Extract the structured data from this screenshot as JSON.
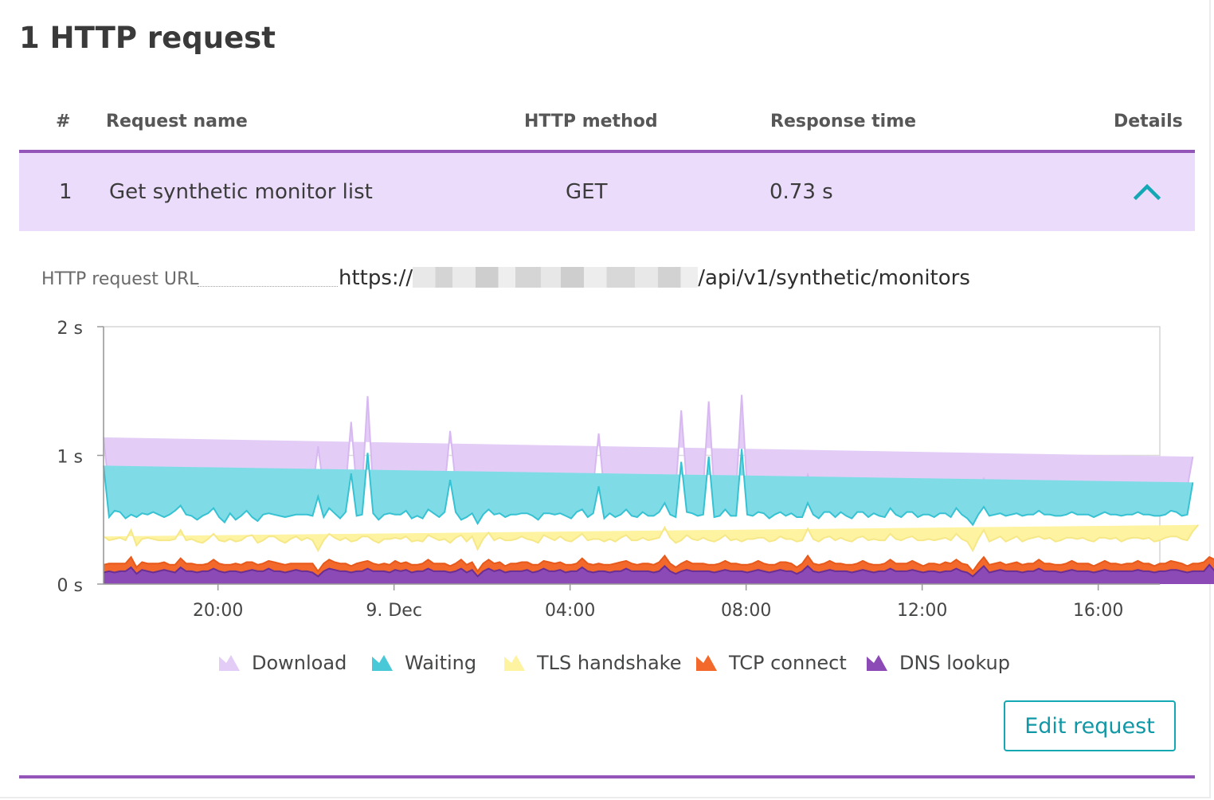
{
  "section_title": "1 HTTP request",
  "table": {
    "headers": {
      "index": "#",
      "name": "Request name",
      "method": "HTTP method",
      "response_time": "Response time",
      "details": "Details"
    },
    "rows": [
      {
        "index": "1",
        "name": "Get synthetic monitor list",
        "method": "GET",
        "response_time": "0.73 s",
        "details_icon": "chevron-up-icon"
      }
    ]
  },
  "request_url": {
    "label": "HTTP request URL",
    "prefix": "https://",
    "suffix": "/api/v1/synthetic/monitors"
  },
  "edit_button_label": "Edit request",
  "colors": {
    "accent_purple": "#9355b7",
    "row_highlight": "#ebdcfc",
    "teal": "#14a8b5"
  },
  "chart_data": {
    "type": "area",
    "stacked": true,
    "y_unit": "s",
    "ylim": [
      0,
      2
    ],
    "y_ticks": [
      "0 s",
      "1 s",
      "2 s"
    ],
    "x_ticks": [
      {
        "label": "20:00",
        "at": 2
      },
      {
        "label": "9. Dec",
        "at": 6
      },
      {
        "label": "04:00",
        "at": 10
      },
      {
        "label": "08:00",
        "at": 14
      },
      {
        "label": "12:00",
        "at": 18
      },
      {
        "label": "16:00",
        "at": 22
      }
    ],
    "x_range": [
      -0.6,
      23.4
    ],
    "x_step": 0.125,
    "grid": true,
    "legend_position": "bottom",
    "series": [
      {
        "name": "DNS lookup",
        "color": "#8b4ab5",
        "values": [
          0.09,
          0.1,
          0.09,
          0.1,
          0.1,
          0.13,
          0.08,
          0.11,
          0.1,
          0.09,
          0.1,
          0.11,
          0.1,
          0.09,
          0.13,
          0.1,
          0.1,
          0.09,
          0.1,
          0.1,
          0.12,
          0.1,
          0.09,
          0.1,
          0.1,
          0.09,
          0.1,
          0.11,
          0.1,
          0.1,
          0.12,
          0.1,
          0.1,
          0.09,
          0.1,
          0.11,
          0.1,
          0.1,
          0.09,
          0.06,
          0.1,
          0.12,
          0.11,
          0.1,
          0.1,
          0.09,
          0.1,
          0.1,
          0.12,
          0.1,
          0.1,
          0.1,
          0.09,
          0.11,
          0.1,
          0.11,
          0.09,
          0.1,
          0.1,
          0.12,
          0.1,
          0.1,
          0.1,
          0.09,
          0.1,
          0.12,
          0.09,
          0.11,
          0.06,
          0.1,
          0.12,
          0.1,
          0.11,
          0.09,
          0.1,
          0.1,
          0.1,
          0.11,
          0.09,
          0.1,
          0.12,
          0.1,
          0.1,
          0.11,
          0.09,
          0.1,
          0.1,
          0.13,
          0.1,
          0.09,
          0.1,
          0.1,
          0.09,
          0.1,
          0.1,
          0.12,
          0.1,
          0.1,
          0.1,
          0.1,
          0.09,
          0.1,
          0.14,
          0.1,
          0.08,
          0.1,
          0.11,
          0.1,
          0.1,
          0.1,
          0.1,
          0.09,
          0.1,
          0.11,
          0.1,
          0.1,
          0.1,
          0.09,
          0.1,
          0.11,
          0.1,
          0.09,
          0.1,
          0.11,
          0.1,
          0.1,
          0.08,
          0.1,
          0.14,
          0.1,
          0.09,
          0.1,
          0.11,
          0.1,
          0.1,
          0.1,
          0.09,
          0.1,
          0.11,
          0.1,
          0.09,
          0.1,
          0.1,
          0.12,
          0.1,
          0.1,
          0.1,
          0.11,
          0.1,
          0.09,
          0.1,
          0.1,
          0.09,
          0.1,
          0.1,
          0.12,
          0.1,
          0.09,
          0.06,
          0.1,
          0.14,
          0.09,
          0.1,
          0.11,
          0.1,
          0.1,
          0.1,
          0.09,
          0.1,
          0.1,
          0.12,
          0.1,
          0.1,
          0.1,
          0.09,
          0.1,
          0.11,
          0.1,
          0.1,
          0.1,
          0.09,
          0.1,
          0.11,
          0.1,
          0.1,
          0.1,
          0.1,
          0.1,
          0.11,
          0.1,
          0.1,
          0.09,
          0.1,
          0.1,
          0.11,
          0.11,
          0.1,
          0.09,
          0.1,
          0.1,
          0.1,
          0.15,
          0.1,
          0.1
        ]
      },
      {
        "name": "TCP connect",
        "color": "#f2692b",
        "values": [
          0.06,
          0.06,
          0.07,
          0.06,
          0.06,
          0.08,
          0.05,
          0.06,
          0.06,
          0.07,
          0.06,
          0.06,
          0.05,
          0.06,
          0.07,
          0.06,
          0.06,
          0.06,
          0.05,
          0.06,
          0.07,
          0.06,
          0.06,
          0.05,
          0.06,
          0.06,
          0.07,
          0.06,
          0.05,
          0.06,
          0.06,
          0.07,
          0.06,
          0.06,
          0.06,
          0.05,
          0.06,
          0.06,
          0.07,
          0.04,
          0.06,
          0.07,
          0.06,
          0.06,
          0.06,
          0.05,
          0.06,
          0.07,
          0.06,
          0.06,
          0.05,
          0.06,
          0.06,
          0.07,
          0.06,
          0.06,
          0.06,
          0.05,
          0.06,
          0.07,
          0.06,
          0.06,
          0.06,
          0.05,
          0.06,
          0.07,
          0.06,
          0.06,
          0.04,
          0.06,
          0.07,
          0.06,
          0.06,
          0.05,
          0.06,
          0.06,
          0.07,
          0.06,
          0.06,
          0.05,
          0.06,
          0.07,
          0.06,
          0.06,
          0.06,
          0.05,
          0.06,
          0.07,
          0.06,
          0.06,
          0.06,
          0.05,
          0.06,
          0.06,
          0.07,
          0.06,
          0.06,
          0.05,
          0.06,
          0.06,
          0.06,
          0.07,
          0.08,
          0.06,
          0.05,
          0.06,
          0.07,
          0.06,
          0.06,
          0.06,
          0.05,
          0.06,
          0.06,
          0.07,
          0.06,
          0.06,
          0.05,
          0.06,
          0.06,
          0.07,
          0.06,
          0.06,
          0.05,
          0.06,
          0.07,
          0.06,
          0.05,
          0.06,
          0.08,
          0.06,
          0.06,
          0.06,
          0.07,
          0.06,
          0.06,
          0.05,
          0.06,
          0.06,
          0.07,
          0.06,
          0.06,
          0.05,
          0.06,
          0.07,
          0.06,
          0.06,
          0.06,
          0.07,
          0.06,
          0.05,
          0.06,
          0.06,
          0.06,
          0.07,
          0.06,
          0.07,
          0.06,
          0.06,
          0.04,
          0.06,
          0.07,
          0.06,
          0.06,
          0.06,
          0.05,
          0.06,
          0.07,
          0.06,
          0.06,
          0.06,
          0.07,
          0.06,
          0.06,
          0.05,
          0.06,
          0.06,
          0.07,
          0.06,
          0.06,
          0.06,
          0.05,
          0.06,
          0.07,
          0.06,
          0.06,
          0.05,
          0.06,
          0.06,
          0.07,
          0.06,
          0.06,
          0.05,
          0.06,
          0.06,
          0.07,
          0.06,
          0.06,
          0.05,
          0.06,
          0.06,
          0.07,
          0.06,
          0.09,
          0.06
        ]
      },
      {
        "name": "TLS handshake",
        "color": "#fdf3a0",
        "values": [
          0.22,
          0.18,
          0.19,
          0.2,
          0.18,
          0.21,
          0.17,
          0.18,
          0.2,
          0.19,
          0.18,
          0.17,
          0.19,
          0.2,
          0.22,
          0.18,
          0.19,
          0.18,
          0.17,
          0.19,
          0.2,
          0.18,
          0.18,
          0.2,
          0.17,
          0.19,
          0.2,
          0.21,
          0.17,
          0.18,
          0.19,
          0.2,
          0.18,
          0.17,
          0.19,
          0.21,
          0.18,
          0.2,
          0.18,
          0.16,
          0.18,
          0.2,
          0.19,
          0.18,
          0.2,
          0.19,
          0.18,
          0.2,
          0.19,
          0.18,
          0.17,
          0.19,
          0.2,
          0.18,
          0.19,
          0.2,
          0.18,
          0.19,
          0.17,
          0.19,
          0.2,
          0.18,
          0.19,
          0.18,
          0.2,
          0.19,
          0.18,
          0.2,
          0.17,
          0.19,
          0.21,
          0.18,
          0.19,
          0.2,
          0.18,
          0.19,
          0.2,
          0.18,
          0.19,
          0.17,
          0.2,
          0.19,
          0.18,
          0.2,
          0.19,
          0.18,
          0.2,
          0.19,
          0.18,
          0.2,
          0.19,
          0.18,
          0.2,
          0.17,
          0.19,
          0.2,
          0.18,
          0.19,
          0.2,
          0.18,
          0.2,
          0.19,
          0.22,
          0.2,
          0.19,
          0.18,
          0.2,
          0.19,
          0.18,
          0.2,
          0.19,
          0.18,
          0.19,
          0.2,
          0.18,
          0.19,
          0.18,
          0.2,
          0.19,
          0.18,
          0.2,
          0.18,
          0.19,
          0.2,
          0.18,
          0.19,
          0.2,
          0.18,
          0.21,
          0.19,
          0.18,
          0.2,
          0.19,
          0.18,
          0.2,
          0.19,
          0.18,
          0.2,
          0.19,
          0.18,
          0.2,
          0.19,
          0.18,
          0.2,
          0.19,
          0.18,
          0.2,
          0.19,
          0.18,
          0.2,
          0.19,
          0.18,
          0.2,
          0.19,
          0.18,
          0.2,
          0.19,
          0.18,
          0.16,
          0.19,
          0.21,
          0.18,
          0.19,
          0.2,
          0.18,
          0.19,
          0.2,
          0.18,
          0.19,
          0.2,
          0.18,
          0.19,
          0.2,
          0.18,
          0.19,
          0.2,
          0.18,
          0.19,
          0.2,
          0.18,
          0.19,
          0.2,
          0.18,
          0.19,
          0.2,
          0.18,
          0.19,
          0.2,
          0.18,
          0.19,
          0.2,
          0.19,
          0.18,
          0.2,
          0.19,
          0.2,
          0.19,
          0.2,
          0.25,
          0.3
        ]
      },
      {
        "name": "Waiting",
        "color": "#7fdce6",
        "values": [
          0.55,
          0.18,
          0.22,
          0.2,
          0.17,
          0.12,
          0.22,
          0.2,
          0.18,
          0.21,
          0.2,
          0.18,
          0.2,
          0.22,
          0.19,
          0.2,
          0.18,
          0.17,
          0.21,
          0.2,
          0.2,
          0.18,
          0.15,
          0.2,
          0.17,
          0.19,
          0.2,
          0.14,
          0.17,
          0.2,
          0.18,
          0.17,
          0.19,
          0.2,
          0.18,
          0.17,
          0.2,
          0.18,
          0.19,
          0.2,
          0.18,
          0.2,
          0.19,
          0.17,
          0.2,
          0.18,
          0.19,
          0.17,
          0.2,
          0.21,
          0.18,
          0.19,
          0.2,
          0.18,
          0.19,
          0.2,
          0.18,
          0.19,
          0.18,
          0.2,
          0.19,
          0.18,
          0.21,
          0.19,
          0.2,
          0.12,
          0.19,
          0.18,
          0.2,
          0.19,
          0.18,
          0.2,
          0.19,
          0.18,
          0.2,
          0.19,
          0.18,
          0.2,
          0.19,
          0.18,
          0.17,
          0.19,
          0.2,
          0.18,
          0.19,
          0.18,
          0.2,
          0.19,
          0.18,
          0.2,
          0.19,
          0.18,
          0.2,
          0.19,
          0.18,
          0.2,
          0.19,
          0.18,
          0.2,
          0.19,
          0.18,
          0.2,
          0.19,
          0.18,
          0.2,
          0.19,
          0.18,
          0.2,
          0.19,
          0.18,
          0.2,
          0.19,
          0.18,
          0.2,
          0.19,
          0.18,
          0.2,
          0.19,
          0.18,
          0.2,
          0.19,
          0.18,
          0.2,
          0.19,
          0.18,
          0.2,
          0.19,
          0.18,
          0.2,
          0.19,
          0.18,
          0.2,
          0.19,
          0.18,
          0.2,
          0.19,
          0.18,
          0.2,
          0.19,
          0.18,
          0.2,
          0.19,
          0.18,
          0.2,
          0.19,
          0.18,
          0.2,
          0.19,
          0.18,
          0.2,
          0.19,
          0.18,
          0.2,
          0.19,
          0.18,
          0.2,
          0.19,
          0.18,
          0.2,
          0.19,
          0.18,
          0.2,
          0.19,
          0.18,
          0.2,
          0.19,
          0.18,
          0.2,
          0.19,
          0.18,
          0.2,
          0.19,
          0.18,
          0.2,
          0.19,
          0.18,
          0.2,
          0.19,
          0.18,
          0.2,
          0.19,
          0.18,
          0.2,
          0.19,
          0.18,
          0.2,
          0.19,
          0.18,
          0.2,
          0.19,
          0.18,
          0.2,
          0.19,
          0.18,
          0.2,
          0.19,
          0.18,
          0.2,
          0.38
        ]
      },
      {
        "name": "Download",
        "color": "#e3cdf6",
        "values": [
          0.22,
          0.2,
          0.21,
          0.2,
          0.19,
          0.2,
          0.21,
          0.2,
          0.19,
          0.22,
          0.21,
          0.2,
          0.19,
          0.2,
          0.21,
          0.2,
          0.22,
          0.19,
          0.2,
          0.21,
          0.2,
          0.19,
          0.22,
          0.2,
          0.2,
          0.21,
          0.19,
          0.2,
          0.2,
          0.21,
          0.19,
          0.2,
          0.22,
          0.2,
          0.21,
          0.19,
          0.2,
          0.21,
          0.2,
          0.19,
          0.22,
          0.2,
          0.21,
          0.2,
          0.19,
          0.2,
          0.21,
          0.2,
          0.22,
          0.19,
          0.2,
          0.21,
          0.2,
          0.19,
          0.22,
          0.2,
          0.2,
          0.21,
          0.19,
          0.2,
          0.2,
          0.21,
          0.19,
          0.2,
          0.22,
          0.2,
          0.21,
          0.19,
          0.2,
          0.21,
          0.2,
          0.19,
          0.22,
          0.2,
          0.21,
          0.2,
          0.19,
          0.2,
          0.21,
          0.2,
          0.22,
          0.19,
          0.2,
          0.21,
          0.2,
          0.19,
          0.22,
          0.2,
          0.2,
          0.21,
          0.19,
          0.2,
          0.2,
          0.21,
          0.19,
          0.2,
          0.22,
          0.2,
          0.21,
          0.19,
          0.2,
          0.21,
          0.2,
          0.19,
          0.22,
          0.2,
          0.21,
          0.2,
          0.19,
          0.2,
          0.21,
          0.2,
          0.22,
          0.19,
          0.2,
          0.21,
          0.2,
          0.19,
          0.22,
          0.2,
          0.2,
          0.21,
          0.19,
          0.2,
          0.2,
          0.21,
          0.19,
          0.2,
          0.22,
          0.2,
          0.21,
          0.19,
          0.2,
          0.21,
          0.2,
          0.19,
          0.22,
          0.2,
          0.21,
          0.2,
          0.19,
          0.2,
          0.21,
          0.2,
          0.22,
          0.19,
          0.2,
          0.21,
          0.2,
          0.19,
          0.22,
          0.2,
          0.2,
          0.21,
          0.19,
          0.2,
          0.2,
          0.21,
          0.19,
          0.2,
          0.22,
          0.2,
          0.21,
          0.19,
          0.2,
          0.21,
          0.2,
          0.19,
          0.22,
          0.2,
          0.21,
          0.2,
          0.19,
          0.2,
          0.21,
          0.2,
          0.22,
          0.19,
          0.2,
          0.21,
          0.2,
          0.19,
          0.22,
          0.2,
          0.2,
          0.21,
          0.19,
          0.2,
          0.2,
          0.21,
          0.19,
          0.2,
          0.22,
          0.2,
          0.21,
          0.19,
          0.2,
          0.21,
          0.2,
          0.14
        ]
      }
    ],
    "spikes": [
      {
        "series": "Waiting",
        "x": 4.25,
        "add": 0.22
      },
      {
        "series": "Download",
        "x": 4.25,
        "add": 0.2
      },
      {
        "series": "Waiting",
        "x": 5.0,
        "add": 0.35
      },
      {
        "series": "Download",
        "x": 5.0,
        "add": 0.2
      },
      {
        "series": "Waiting",
        "x": 5.375,
        "add": 0.45
      },
      {
        "series": "Download",
        "x": 5.375,
        "add": 0.22
      },
      {
        "series": "Waiting",
        "x": 7.25,
        "add": 0.3
      },
      {
        "series": "Download",
        "x": 7.25,
        "add": 0.18
      },
      {
        "series": "Waiting",
        "x": 10.625,
        "add": 0.22
      },
      {
        "series": "Download",
        "x": 10.625,
        "add": 0.22
      },
      {
        "series": "Waiting",
        "x": 12.5,
        "add": 0.42
      },
      {
        "series": "Download",
        "x": 12.5,
        "add": 0.2
      },
      {
        "series": "Waiting",
        "x": 13.125,
        "add": 0.45
      },
      {
        "series": "Download",
        "x": 13.125,
        "add": 0.22
      },
      {
        "series": "Waiting",
        "x": 13.875,
        "add": 0.52
      },
      {
        "series": "Download",
        "x": 13.875,
        "add": 0.22
      }
    ]
  }
}
